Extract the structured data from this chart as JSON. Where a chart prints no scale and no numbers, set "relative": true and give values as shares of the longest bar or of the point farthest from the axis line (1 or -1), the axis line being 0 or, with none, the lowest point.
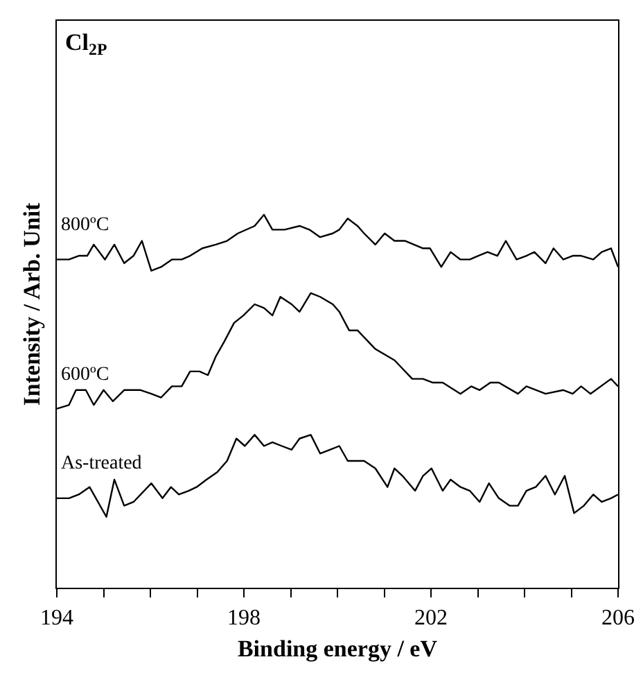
{
  "chart_data": {
    "type": "line",
    "title": "Cl$_{2P}$",
    "xlabel": "Binding energy / eV",
    "ylabel": "Intensity / Arb. Unit",
    "relative": true,
    "legend": false,
    "grid": false,
    "marker": "none",
    "line_style": "solid",
    "xlim": [
      194,
      206
    ],
    "xticks": [
      194,
      {
        "value": 195,
        "label": null
      },
      {
        "value": 196,
        "label": null
      },
      {
        "value": 197,
        "label": null
      },
      198,
      {
        "value": 199,
        "label": null
      },
      {
        "value": 200,
        "label": null
      },
      {
        "value": 201,
        "label": null
      },
      202,
      {
        "value": 203,
        "label": null
      },
      {
        "value": 204,
        "label": null
      },
      {
        "value": 205,
        "label": null
      },
      206
    ],
    "series": [
      {
        "name": "800ºC",
        "color": "#000000",
        "x": [
          194.0,
          194.26,
          194.47,
          194.65,
          194.79,
          195.03,
          195.23,
          195.44,
          195.64,
          195.82,
          196.02,
          196.23,
          196.46,
          196.67,
          196.85,
          197.11,
          197.4,
          197.64,
          197.87,
          198.23,
          198.43,
          198.61,
          198.87,
          199.19,
          199.4,
          199.63,
          199.9,
          200.04,
          200.22,
          200.43,
          200.57,
          200.81,
          201.01,
          201.22,
          201.45,
          201.83,
          201.98,
          202.22,
          202.42,
          202.63,
          202.83,
          203.01,
          203.21,
          203.42,
          203.6,
          203.83,
          204.04,
          204.21,
          204.45,
          204.62,
          204.83,
          205.03,
          205.21,
          205.47,
          205.65,
          205.85,
          206.0
        ],
        "values": [
          0.88,
          0.88,
          0.89,
          0.89,
          0.92,
          0.88,
          0.92,
          0.87,
          0.89,
          0.93,
          0.85,
          0.86,
          0.88,
          0.88,
          0.89,
          0.91,
          0.92,
          0.93,
          0.95,
          0.97,
          1,
          0.96,
          0.96,
          0.97,
          0.96,
          0.94,
          0.95,
          0.96,
          0.99,
          0.97,
          0.95,
          0.92,
          0.95,
          0.93,
          0.93,
          0.91,
          0.91,
          0.86,
          0.9,
          0.88,
          0.88,
          0.89,
          0.9,
          0.89,
          0.93,
          0.88,
          0.89,
          0.9,
          0.87,
          0.91,
          0.88,
          0.89,
          0.89,
          0.88,
          0.9,
          0.91,
          0.86
        ]
      },
      {
        "name": "600ºC",
        "color": "#000000",
        "x": [
          194.0,
          194.26,
          194.41,
          194.62,
          194.79,
          195.0,
          195.2,
          195.44,
          195.79,
          196.02,
          196.23,
          196.46,
          196.67,
          196.85,
          197.05,
          197.23,
          197.4,
          197.58,
          197.79,
          197.99,
          198.23,
          198.43,
          198.61,
          198.78,
          199.02,
          199.19,
          199.43,
          199.63,
          199.9,
          200.04,
          200.25,
          200.43,
          200.81,
          201.22,
          201.6,
          201.83,
          202.04,
          202.25,
          202.63,
          202.86,
          203.04,
          203.27,
          203.45,
          203.86,
          204.04,
          204.45,
          204.83,
          205.03,
          205.21,
          205.41,
          205.85,
          206.0
        ],
        "values": [
          0.48,
          0.49,
          0.53,
          0.53,
          0.49,
          0.53,
          0.5,
          0.53,
          0.53,
          0.52,
          0.51,
          0.54,
          0.54,
          0.58,
          0.58,
          0.57,
          0.62,
          0.66,
          0.71,
          0.73,
          0.76,
          0.75,
          0.73,
          0.78,
          0.76,
          0.74,
          0.79,
          0.78,
          0.76,
          0.74,
          0.69,
          0.69,
          0.64,
          0.61,
          0.56,
          0.56,
          0.55,
          0.55,
          0.52,
          0.54,
          0.53,
          0.55,
          0.55,
          0.52,
          0.54,
          0.52,
          0.53,
          0.52,
          0.54,
          0.52,
          0.56,
          0.54
        ]
      },
      {
        "name": "As-treated",
        "color": "#000000",
        "x": [
          194.0,
          194.26,
          194.47,
          194.7,
          195.06,
          195.23,
          195.44,
          195.64,
          196.02,
          196.26,
          196.44,
          196.61,
          196.82,
          196.99,
          197.2,
          197.43,
          197.64,
          197.84,
          198.02,
          198.23,
          198.43,
          198.61,
          198.81,
          199.02,
          199.19,
          199.43,
          199.63,
          199.84,
          200.04,
          200.22,
          200.37,
          200.57,
          200.81,
          201.07,
          201.22,
          201.39,
          201.66,
          201.83,
          202.01,
          202.25,
          202.42,
          202.63,
          202.83,
          203.04,
          203.24,
          203.45,
          203.68,
          203.86,
          204.04,
          204.24,
          204.45,
          204.65,
          204.86,
          205.06,
          205.27,
          205.47,
          205.65,
          205.85,
          206.0
        ],
        "values": [
          0.24,
          0.24,
          0.25,
          0.27,
          0.19,
          0.29,
          0.22,
          0.23,
          0.28,
          0.24,
          0.27,
          0.25,
          0.26,
          0.27,
          0.29,
          0.31,
          0.34,
          0.4,
          0.38,
          0.41,
          0.38,
          0.39,
          0.38,
          0.37,
          0.4,
          0.41,
          0.36,
          0.37,
          0.38,
          0.34,
          0.34,
          0.34,
          0.32,
          0.27,
          0.32,
          0.3,
          0.26,
          0.3,
          0.32,
          0.26,
          0.29,
          0.27,
          0.26,
          0.23,
          0.28,
          0.24,
          0.22,
          0.22,
          0.26,
          0.27,
          0.3,
          0.25,
          0.3,
          0.2,
          0.22,
          0.25,
          0.23,
          0.24,
          0.25
        ]
      }
    ]
  }
}
